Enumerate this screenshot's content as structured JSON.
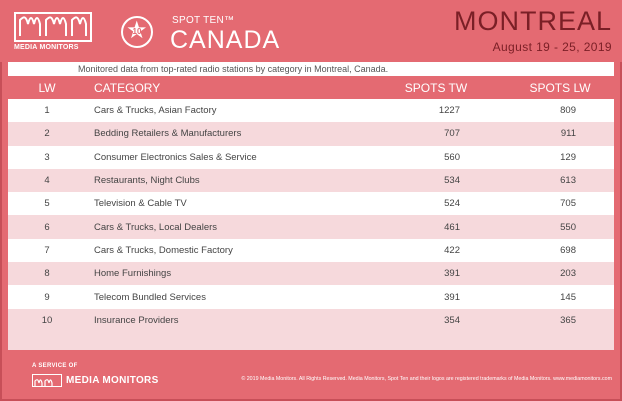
{
  "header": {
    "logo_text": "MEDIA MONITORS",
    "badge_number": "10",
    "spot_ten": "SPOT TEN™",
    "country": "CANADA",
    "city": "MONTREAL",
    "dates": "August 19 - 25, 2019"
  },
  "subtitle": "Monitored data from top-rated radio stations by category in Montreal, Canada.",
  "table": {
    "headers": {
      "lw": "LW",
      "category": "CATEGORY",
      "spots_tw": "SPOTS TW",
      "spots_lw": "SPOTS LW"
    },
    "rows": [
      {
        "lw": "1",
        "category": "Cars & Trucks, Asian Factory",
        "tw": "1227",
        "lwv": "809"
      },
      {
        "lw": "2",
        "category": "Bedding Retailers & Manufacturers",
        "tw": "707",
        "lwv": "911"
      },
      {
        "lw": "3",
        "category": "Consumer Electronics Sales & Service",
        "tw": "560",
        "lwv": "129"
      },
      {
        "lw": "4",
        "category": "Restaurants, Night Clubs",
        "tw": "534",
        "lwv": "613"
      },
      {
        "lw": "5",
        "category": "Television & Cable TV",
        "tw": "524",
        "lwv": "705"
      },
      {
        "lw": "6",
        "category": "Cars & Trucks, Local Dealers",
        "tw": "461",
        "lwv": "550"
      },
      {
        "lw": "7",
        "category": "Cars & Trucks, Domestic Factory",
        "tw": "422",
        "lwv": "698"
      },
      {
        "lw": "8",
        "category": "Home Furnishings",
        "tw": "391",
        "lwv": "203"
      },
      {
        "lw": "9",
        "category": "Telecom Bundled Services",
        "tw": "391",
        "lwv": "145"
      },
      {
        "lw": "10",
        "category": "Insurance Providers",
        "tw": "354",
        "lwv": "365"
      }
    ]
  },
  "footer": {
    "service": "A SERVICE OF",
    "logo_text": "MEDIA MONITORS",
    "copyright": "© 2019 Media Monitors. All Rights Reserved. Media Monitors, Spot Ten and their logos are registered trademarks of Media Monitors. www.mediamonitors.com"
  },
  "colors": {
    "brand": "#e46a72",
    "dark_text": "#7a1f26",
    "stripe": "#f6d9dc"
  }
}
